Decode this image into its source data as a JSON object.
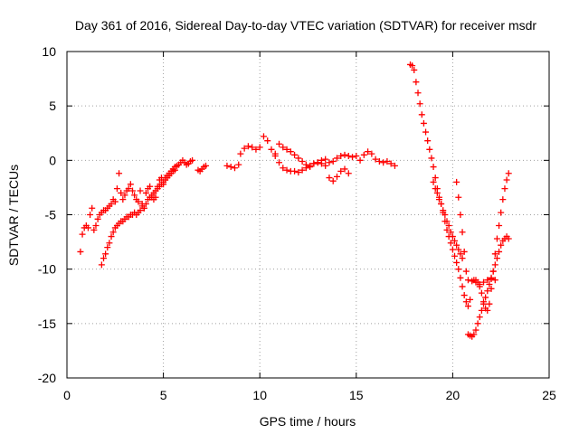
{
  "chart_data": {
    "type": "scatter",
    "title": "Day 361 of 2016, Sidereal Day-to-day VTEC variation (SDTVAR) for receiver msdr",
    "xlabel": "GPS time / hours",
    "ylabel": "SDTVAR / TECUs",
    "xlim": [
      0,
      25
    ],
    "ylim": [
      -20,
      10
    ],
    "x_ticks": [
      "0",
      "5",
      "10",
      "15",
      "20",
      "25"
    ],
    "y_ticks": [
      "10",
      "5",
      "0",
      "-5",
      "-10",
      "-15",
      "-20"
    ],
    "grid": true,
    "marker": "+",
    "color": "#ff0000",
    "series": [
      {
        "x": [
          0.7,
          0.8,
          0.9,
          1.0,
          1.1,
          1.2,
          1.3,
          1.4,
          1.5,
          1.6,
          1.7,
          1.8,
          1.9,
          2.0,
          2.1,
          2.2,
          2.3,
          2.4,
          2.5,
          2.6,
          2.7,
          2.8,
          2.9,
          3.0,
          3.1,
          3.2,
          3.3,
          3.4,
          3.5,
          3.6,
          3.7,
          3.8,
          3.9,
          4.0,
          4.1,
          4.2,
          4.3,
          4.4,
          4.5,
          4.6,
          4.7,
          4.8,
          4.9,
          5.0,
          5.1,
          5.2,
          5.3,
          5.4,
          5.5,
          5.6,
          5.7,
          5.8,
          5.9,
          6.0,
          6.1,
          6.2,
          6.3,
          6.4,
          6.5
        ],
        "y": [
          -8.4,
          -6.8,
          -6.2,
          -6.0,
          -6.2,
          -5.0,
          -4.4,
          -6.4,
          -6.0,
          -5.4,
          -5.0,
          -4.8,
          -4.6,
          -4.6,
          -4.4,
          -4.2,
          -4.0,
          -3.6,
          -3.8,
          -2.6,
          -1.2,
          -3.0,
          -3.6,
          -3.2,
          -2.8,
          -2.6,
          -2.2,
          -2.8,
          -3.2,
          -3.6,
          -3.8,
          -2.8,
          -4.0,
          -4.4,
          -3.0,
          -2.6,
          -2.4,
          -3.4,
          -3.6,
          -3.4,
          -2.4,
          -1.8,
          -1.6,
          -2.2,
          -1.6,
          -1.4,
          -1.2,
          -1.0,
          -0.8,
          -0.6,
          -0.5,
          -0.4,
          -0.2,
          0.0,
          -0.2,
          -0.4,
          -0.3,
          -0.1,
          0.0
        ]
      },
      {
        "x": [
          1.8,
          1.9,
          2.0,
          2.1,
          2.2,
          2.3,
          2.4,
          2.5,
          2.6,
          2.7,
          2.8,
          2.9,
          3.0,
          3.1,
          3.2,
          3.3,
          3.4,
          3.5,
          3.6,
          3.7,
          3.8,
          3.9,
          4.0,
          4.1,
          4.2,
          4.3,
          4.4,
          4.5,
          4.6,
          4.7,
          4.8,
          4.9,
          5.0,
          5.1,
          5.2,
          5.3,
          5.4,
          5.5,
          5.6
        ],
        "y": [
          -9.6,
          -9.0,
          -8.6,
          -8.0,
          -7.6,
          -7.0,
          -6.6,
          -6.2,
          -6.0,
          -5.8,
          -5.6,
          -5.6,
          -5.4,
          -5.2,
          -5.2,
          -5.0,
          -5.0,
          -4.8,
          -5.0,
          -4.8,
          -4.6,
          -4.2,
          -4.4,
          -4.0,
          -3.6,
          -3.4,
          -3.2,
          -3.0,
          -2.8,
          -2.6,
          -2.4,
          -2.2,
          -2.0,
          -1.8,
          -1.6,
          -1.4,
          -1.2,
          -1.0,
          -0.9
        ]
      },
      {
        "x": [
          6.8,
          6.9,
          7.0,
          7.1,
          7.2,
          8.3,
          8.5,
          8.7,
          8.9,
          9.0,
          9.2,
          9.4,
          9.6,
          9.8,
          10.0,
          10.2,
          10.4,
          10.6,
          10.8,
          11.0,
          11.2,
          11.4,
          11.6,
          11.8,
          12.0,
          12.2,
          12.4,
          12.6,
          12.8,
          13.0,
          13.2,
          13.4,
          13.6,
          13.8,
          14.0,
          14.2,
          14.4,
          14.6,
          14.8,
          15.0,
          15.2,
          15.4,
          15.6,
          15.8,
          16.0,
          16.2,
          16.4,
          16.6,
          16.8,
          17.0
        ],
        "y": [
          -0.9,
          -1.0,
          -0.8,
          -0.6,
          -0.5,
          -0.5,
          -0.6,
          -0.7,
          -0.4,
          0.6,
          1.1,
          1.3,
          1.2,
          1.0,
          1.2,
          2.2,
          1.8,
          1.0,
          0.4,
          1.5,
          1.2,
          1.0,
          0.8,
          0.5,
          0.2,
          -0.1,
          -0.4,
          -0.6,
          -0.3,
          -0.2,
          0.0,
          0.1,
          -0.2,
          -0.1,
          0.2,
          0.4,
          0.5,
          0.4,
          0.3,
          0.4,
          0.0,
          0.5,
          0.8,
          0.6,
          0.1,
          -0.1,
          -0.2,
          -0.1,
          -0.3,
          -0.5
        ]
      },
      {
        "x": [
          10.8,
          11.0,
          11.2,
          11.4,
          11.6,
          11.8,
          12.0,
          12.2,
          12.4,
          12.6,
          12.8,
          13.0,
          13.2,
          13.4,
          13.6,
          13.8,
          14.0,
          14.2,
          14.4,
          14.6
        ],
        "y": [
          0.6,
          -0.2,
          -0.7,
          -0.9,
          -1.0,
          -1.0,
          -1.1,
          -0.9,
          -0.7,
          -0.5,
          -0.3,
          -0.2,
          -0.3,
          -0.5,
          -1.6,
          -1.9,
          -1.5,
          -1.0,
          -0.8,
          -1.2
        ]
      },
      {
        "x": [
          17.8,
          17.9,
          18.0,
          18.1,
          18.2,
          18.3,
          18.4,
          18.5,
          18.6,
          18.7,
          18.8,
          18.9,
          19.0,
          19.1,
          19.2,
          19.3,
          19.4,
          19.5,
          19.6,
          19.7,
          19.8,
          19.9,
          20.0,
          20.1,
          20.2,
          20.3,
          20.4,
          20.5,
          20.6,
          20.7,
          20.8,
          20.9
        ],
        "y": [
          8.8,
          8.7,
          8.3,
          7.2,
          6.2,
          5.2,
          4.2,
          3.4,
          2.6,
          1.8,
          1.0,
          0.2,
          -0.6,
          -1.6,
          -2.6,
          -3.4,
          -4.0,
          -4.8,
          -5.6,
          -6.4,
          -7.0,
          -7.6,
          -8.2,
          -8.8,
          -9.4,
          -10.0,
          -10.8,
          -11.6,
          -12.4,
          -13.0,
          -13.4,
          -12.8
        ]
      },
      {
        "x": [
          19.0,
          19.1,
          19.2,
          19.3,
          19.4,
          19.5,
          19.6,
          19.7,
          19.8,
          19.9,
          20.0,
          20.1,
          20.2,
          20.3,
          20.4,
          20.5
        ],
        "y": [
          -2.0,
          -2.6,
          -3.0,
          -3.6,
          -4.0,
          -4.6,
          -5.0,
          -5.6,
          -6.0,
          -6.6,
          -7.0,
          -7.4,
          -7.8,
          -8.2,
          -8.6,
          -9.0
        ]
      },
      {
        "x": [
          20.2,
          20.3,
          20.4,
          20.5,
          20.6,
          20.7
        ],
        "y": [
          -2.0,
          -3.4,
          -5.0,
          -6.6,
          -8.4,
          -10.2
        ]
      },
      {
        "x": [
          20.8,
          20.9,
          21.0,
          21.1,
          21.2,
          21.3,
          21.4,
          21.5,
          21.6,
          21.7,
          21.8,
          21.9,
          22.0,
          22.1,
          22.2,
          22.3,
          22.4,
          22.5,
          22.6,
          22.7,
          22.8,
          22.9
        ],
        "y": [
          -16.0,
          -16.1,
          -16.2,
          -16.0,
          -15.6,
          -15.0,
          -14.4,
          -13.8,
          -13.2,
          -12.6,
          -12.0,
          -11.4,
          -10.8,
          -10.2,
          -9.6,
          -9.0,
          -8.4,
          -7.8,
          -7.4,
          -7.2,
          -7.0,
          -7.2
        ]
      },
      {
        "x": [
          21.1,
          21.2,
          21.3,
          21.4,
          21.5,
          21.6,
          21.7,
          21.8,
          21.9,
          22.0,
          22.1,
          22.2,
          22.3,
          22.4,
          22.5,
          22.6,
          22.7,
          22.8,
          22.9
        ],
        "y": [
          -11.0,
          -11.0,
          -11.2,
          -11.6,
          -12.2,
          -13.0,
          -13.6,
          -13.8,
          -13.2,
          -11.8,
          -10.2,
          -8.6,
          -7.2,
          -6.0,
          -4.8,
          -3.6,
          -2.6,
          -1.8,
          -1.2
        ]
      },
      {
        "x": [
          20.8,
          21.0,
          21.2,
          21.4,
          21.6,
          21.8,
          22.0,
          22.2
        ],
        "y": [
          -11.0,
          -11.1,
          -11.2,
          -11.4,
          -11.2,
          -11.0,
          -10.9,
          -11.0
        ]
      }
    ]
  }
}
